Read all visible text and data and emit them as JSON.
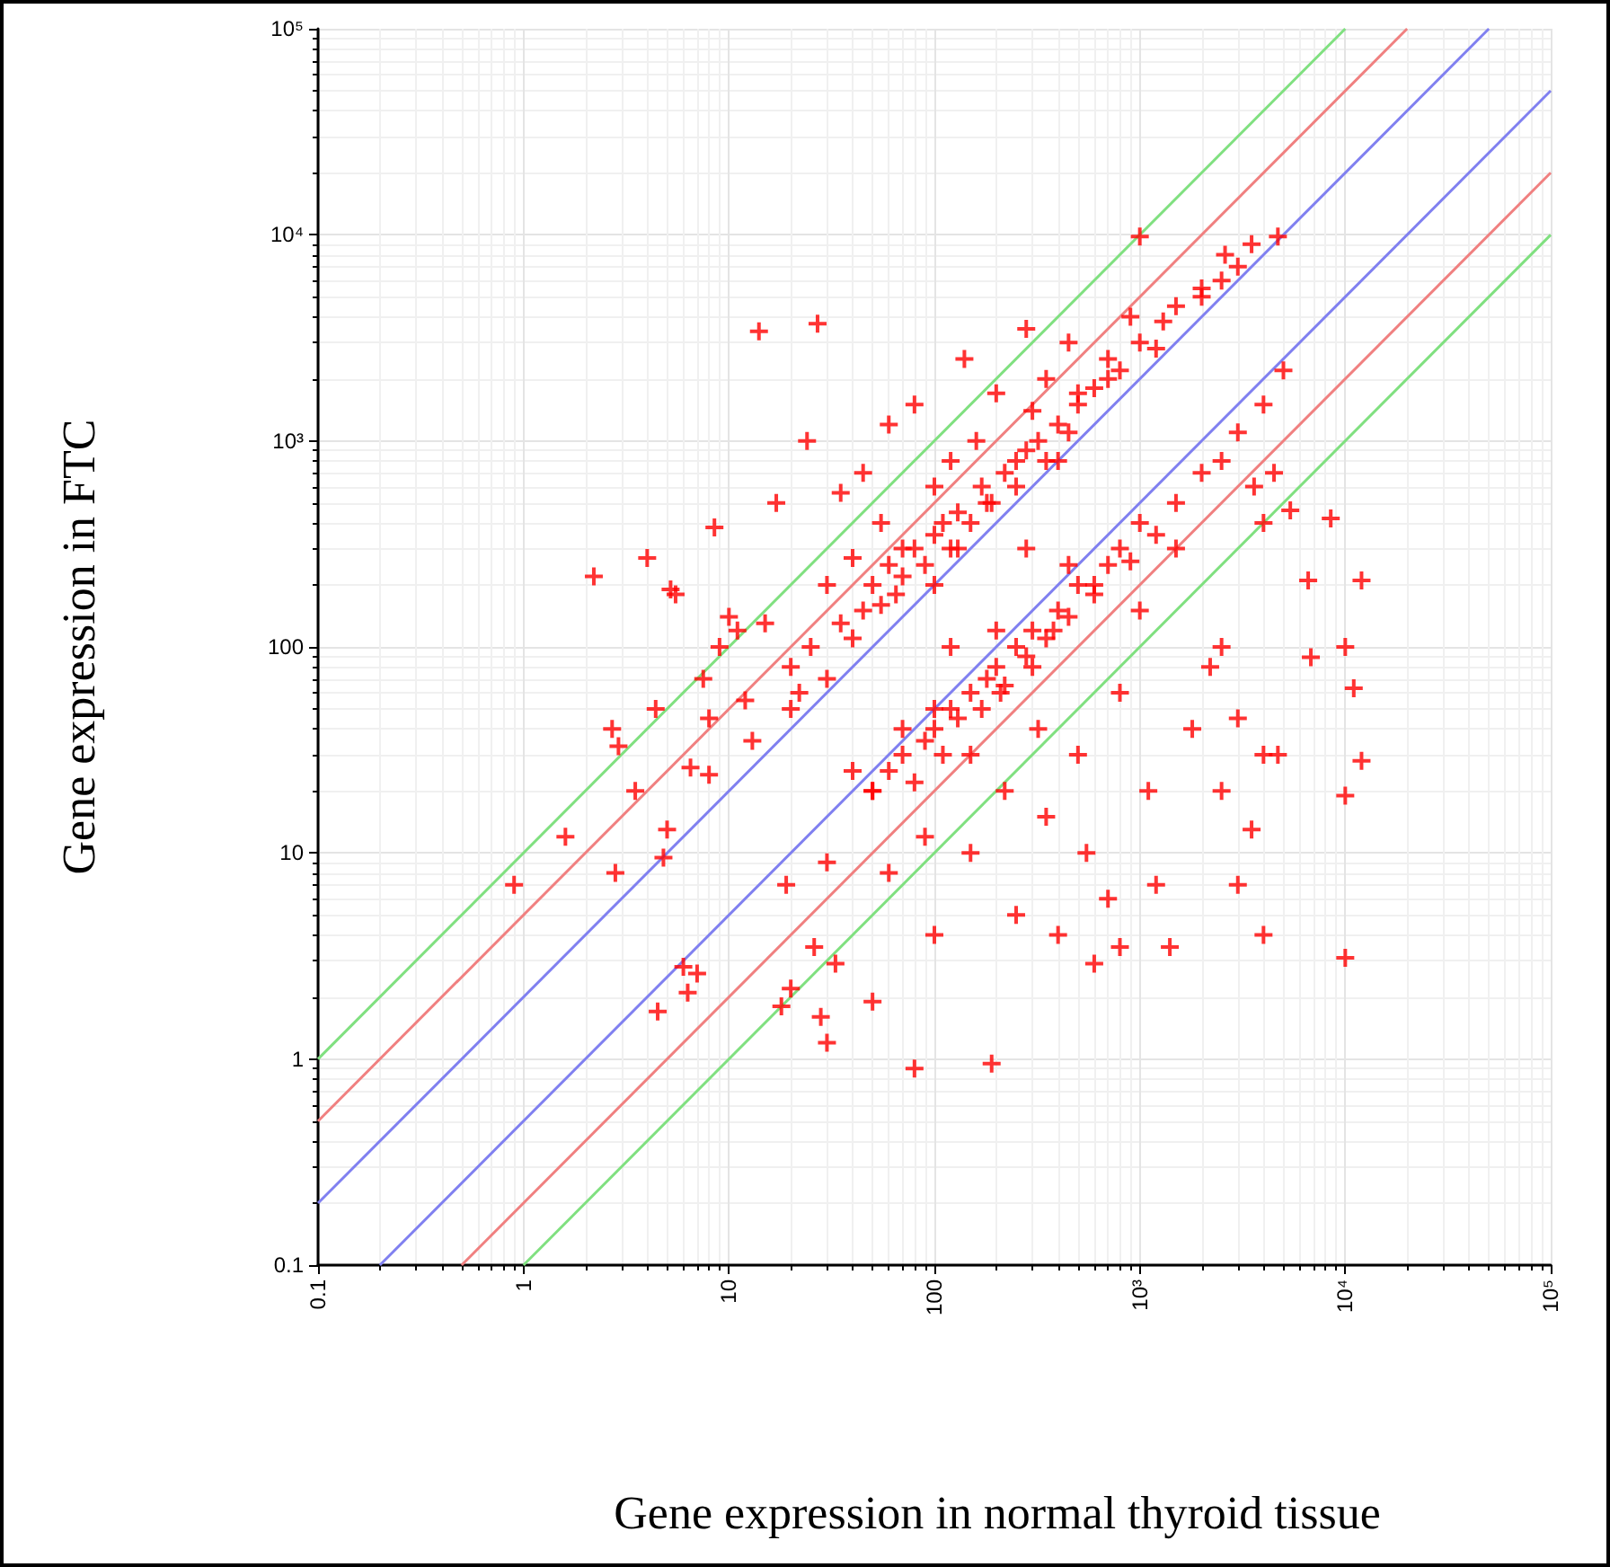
{
  "chart_data": {
    "type": "scatter",
    "xlabel": "Gene expression in normal thyroid tissue",
    "ylabel": "Gene expression in FTC",
    "log": "xy",
    "grid": true,
    "xlim": [
      0.1,
      100000
    ],
    "ylim": [
      0.1,
      100000
    ],
    "xticks": [
      0.1,
      1,
      10,
      100,
      {
        "value": 1000,
        "label": "10³"
      },
      {
        "value": 10000,
        "label": "10⁴"
      },
      {
        "value": 100000,
        "label": "10⁵"
      }
    ],
    "yticks": [
      0.1,
      1,
      10,
      100,
      {
        "value": 1000,
        "label": "10³"
      },
      {
        "value": 10000,
        "label": "10⁴"
      },
      {
        "value": 100000,
        "label": "10⁵"
      }
    ],
    "series": [
      {
        "marker": "cross",
        "color": "#ff0000",
        "x": [
          0.9,
          1.6,
          2.2,
          2.7,
          2.9,
          2.8,
          3.5,
          4,
          4.4,
          4.5,
          4.8,
          5,
          5.2,
          5.5,
          6,
          6.3,
          6.5,
          7,
          7.5,
          8,
          8,
          8.5,
          9,
          10,
          11,
          12,
          13,
          14,
          15,
          17,
          18,
          19,
          20,
          20,
          22,
          24,
          26,
          27,
          28,
          30,
          30,
          30,
          33,
          35,
          40,
          40,
          45,
          50,
          50,
          55,
          60,
          60,
          70,
          70,
          80,
          80,
          90,
          100,
          100,
          100,
          100,
          120,
          120,
          130,
          140,
          150,
          150,
          160,
          180,
          190,
          200,
          200,
          210,
          220,
          250,
          250,
          280,
          280,
          300,
          300,
          320,
          350,
          350,
          380,
          400,
          400,
          450,
          450,
          500,
          500,
          550,
          600,
          600,
          700,
          700,
          800,
          800,
          900,
          1000,
          1000,
          1100,
          1200,
          1300,
          1400,
          1500,
          1800,
          2000,
          2200,
          2500,
          2500,
          2600,
          3000,
          3000,
          3500,
          3600,
          4000,
          4000,
          4700,
          4500,
          5400,
          8500,
          6600,
          12000,
          6800,
          10000,
          11000,
          4700,
          12000,
          10000,
          4000,
          10000,
          20,
          25,
          30,
          35,
          40,
          45,
          50,
          55,
          60,
          65,
          70,
          80,
          90,
          100,
          110,
          120,
          130,
          150,
          170,
          190,
          220,
          250,
          280,
          320,
          350,
          400,
          450,
          500,
          600,
          700,
          800,
          1000,
          1200,
          1500,
          2000,
          2500,
          3000,
          3500,
          50,
          60,
          70,
          80,
          90,
          100,
          110,
          120,
          130,
          150,
          170,
          180,
          200,
          220,
          250,
          280,
          300,
          350,
          400,
          450,
          500,
          600,
          700,
          800,
          900,
          1000,
          1200,
          1500,
          2000,
          2500,
          3000,
          4000,
          5000
        ],
        "values": [
          7,
          12,
          220,
          40,
          33,
          8,
          20,
          270,
          50,
          1.7,
          9.5,
          13,
          190,
          180,
          2.8,
          2.1,
          26,
          2.6,
          70,
          45,
          24,
          380,
          100,
          140,
          120,
          55,
          35,
          3400,
          130,
          500,
          1.8,
          7,
          2.2,
          50,
          60,
          1000,
          3.5,
          3700,
          1.6,
          1.2,
          200,
          9,
          2.9,
          560,
          270,
          25,
          700,
          20,
          1.9,
          400,
          1200,
          8,
          300,
          40,
          0.9,
          1500,
          12,
          600,
          200,
          50,
          4,
          800,
          100,
          300,
          2500,
          30,
          10,
          1000,
          500,
          0.95,
          1700,
          120,
          60,
          20,
          800,
          5,
          3500,
          300,
          1400,
          80,
          40,
          2000,
          15,
          120,
          800,
          4,
          3000,
          250,
          30,
          1500,
          10,
          200,
          2.9,
          2500,
          6,
          60,
          3.5,
          4000,
          150,
          9800,
          20,
          7,
          3800,
          3.5,
          300,
          40,
          5500,
          80,
          100,
          20,
          8000,
          7,
          45,
          13,
          600,
          400,
          30,
          9800,
          700,
          460,
          420,
          210,
          210,
          89,
          100,
          63,
          30,
          28,
          19,
          4,
          3.1,
          80,
          100,
          70,
          130,
          110,
          150,
          200,
          160,
          250,
          180,
          220,
          300,
          250,
          350,
          400,
          300,
          450,
          400,
          600,
          500,
          700,
          600,
          900,
          1000,
          800,
          1200,
          1100,
          1700,
          1800,
          2000,
          2200,
          3000,
          2800,
          4500,
          5000,
          6000,
          7000,
          9000,
          20,
          25,
          30,
          22,
          35,
          40,
          30,
          50,
          45,
          60,
          50,
          70,
          80,
          65,
          100,
          90,
          120,
          110,
          150,
          140,
          200,
          180,
          250,
          300,
          260,
          400,
          350,
          500,
          700,
          800,
          1100,
          1500,
          2200
        ]
      },
      {
        "type": "line",
        "color": "#80e080",
        "line_style": "solid",
        "x": [
          0.1,
          10000
        ],
        "values": [
          1,
          100000
        ]
      },
      {
        "type": "line",
        "color": "#f08080",
        "line_style": "solid",
        "x": [
          0.1,
          20000
        ],
        "values": [
          0.5,
          100000
        ]
      },
      {
        "type": "line",
        "color": "#8080f0",
        "line_style": "solid",
        "x": [
          0.1,
          50000
        ],
        "values": [
          0.2,
          100000
        ]
      },
      {
        "type": "line",
        "color": "#8080f0",
        "line_style": "solid",
        "x": [
          0.2,
          100000
        ],
        "values": [
          0.1,
          50000
        ]
      },
      {
        "type": "line",
        "color": "#f08080",
        "line_style": "solid",
        "x": [
          0.5,
          100000
        ],
        "values": [
          0.1,
          20000
        ]
      },
      {
        "type": "line",
        "color": "#80e080",
        "line_style": "solid",
        "x": [
          1,
          100000
        ],
        "values": [
          0.1,
          10000
        ]
      }
    ]
  }
}
